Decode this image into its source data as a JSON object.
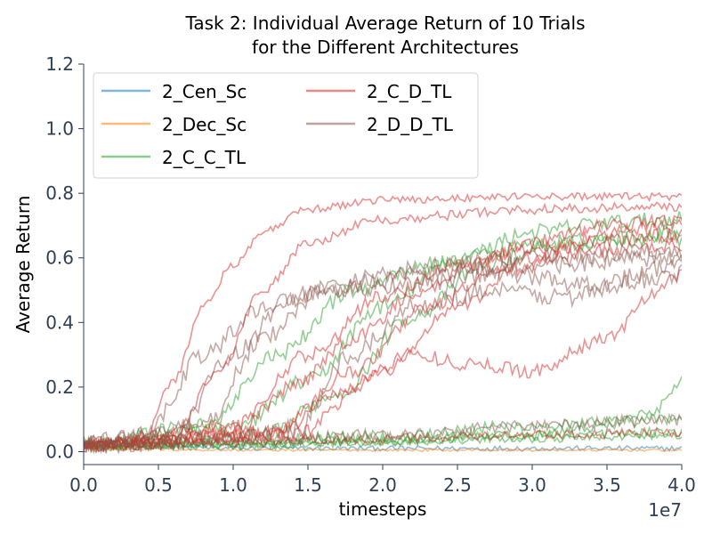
{
  "chart_data": {
    "type": "line",
    "title": [
      "Task 2: Individual Average Return of 10 Trials",
      "for the Different Architectures"
    ],
    "xlabel": "timesteps",
    "ylabel": "Average Return",
    "x_multiplier_label": "1e7",
    "xlim": [
      0,
      40000000
    ],
    "ylim": [
      -0.04,
      1.2
    ],
    "x_ticks": [
      0,
      5000000,
      10000000,
      15000000,
      20000000,
      25000000,
      30000000,
      35000000,
      40000000
    ],
    "x_tick_labels": [
      "0.0",
      "0.5",
      "1.0",
      "1.5",
      "2.0",
      "2.5",
      "3.0",
      "3.5",
      "4.0"
    ],
    "y_ticks": [
      0.0,
      0.2,
      0.4,
      0.6,
      0.8,
      1.0,
      1.2
    ],
    "y_tick_labels": [
      "0.0",
      "0.2",
      "0.4",
      "0.6",
      "0.8",
      "1.0",
      "1.2"
    ],
    "grid": false,
    "legend_position": "top-left",
    "legend_columns": 2,
    "series": [
      {
        "name": "2_Cen_Sc",
        "color": "#1f77b4",
        "trials": [
          {
            "x": [
              0,
              10000000,
              20000000,
              30000000,
              40000000
            ],
            "y": [
              0.02,
              0.01,
              0.01,
              0.01,
              0.01
            ],
            "noise": 0.008
          }
        ]
      },
      {
        "name": "2_Dec_Sc",
        "color": "#ff7f0e",
        "trials": [
          {
            "x": [
              0,
              10000000,
              20000000,
              30000000,
              40000000
            ],
            "y": [
              0.01,
              0.005,
              0.005,
              0.005,
              0.005
            ],
            "noise": 0.004
          }
        ]
      },
      {
        "name": "2_C_C_TL",
        "color": "#2ca02c",
        "trials": [
          {
            "x": [
              0,
              10000000,
              15000000,
              20000000,
              25000000,
              30000000,
              35000000,
              40000000
            ],
            "y": [
              0.02,
              0.07,
              0.22,
              0.45,
              0.6,
              0.68,
              0.71,
              0.72
            ],
            "noise": 0.025
          },
          {
            "x": [
              0,
              12000000,
              17000000,
              22000000,
              27000000,
              32000000,
              40000000
            ],
            "y": [
              0.02,
              0.05,
              0.18,
              0.42,
              0.58,
              0.65,
              0.68
            ],
            "noise": 0.025
          },
          {
            "x": [
              0,
              10000000,
              20000000,
              30000000,
              40000000
            ],
            "y": [
              0.02,
              0.03,
              0.04,
              0.05,
              0.06
            ],
            "noise": 0.015
          },
          {
            "x": [
              0,
              10000000,
              20000000,
              30000000,
              40000000
            ],
            "y": [
              0.02,
              0.02,
              0.03,
              0.04,
              0.05
            ],
            "noise": 0.012
          },
          {
            "x": [
              0,
              10000000,
              20000000,
              30000000,
              35000000,
              38000000,
              40000000
            ],
            "y": [
              0.02,
              0.02,
              0.03,
              0.05,
              0.08,
              0.12,
              0.22
            ],
            "noise": 0.015
          },
          {
            "x": [
              0,
              10000000,
              20000000,
              30000000,
              40000000
            ],
            "y": [
              0.02,
              0.03,
              0.05,
              0.08,
              0.1
            ],
            "noise": 0.02
          },
          {
            "x": [
              0,
              8000000,
              13000000,
              18000000,
              23000000,
              30000000,
              40000000
            ],
            "y": [
              0.02,
              0.08,
              0.3,
              0.5,
              0.58,
              0.64,
              0.66
            ],
            "noise": 0.025
          }
        ]
      },
      {
        "name": "2_C_D_TL",
        "color": "#d62728",
        "trials": [
          {
            "x": [
              0,
              4000000,
              6000000,
              8000000,
              10000000,
              12000000,
              15000000,
              20000000,
              30000000,
              40000000
            ],
            "y": [
              0.02,
              0.04,
              0.22,
              0.45,
              0.58,
              0.68,
              0.75,
              0.78,
              0.79,
              0.79
            ],
            "noise": 0.012
          },
          {
            "x": [
              0,
              6000000,
              9000000,
              12000000,
              15000000,
              20000000,
              30000000,
              40000000
            ],
            "y": [
              0.02,
              0.05,
              0.25,
              0.5,
              0.65,
              0.72,
              0.75,
              0.76
            ],
            "noise": 0.015
          },
          {
            "x": [
              0,
              10000000,
              14000000,
              18000000,
              22000000,
              26000000,
              30000000,
              35000000,
              40000000
            ],
            "y": [
              0.02,
              0.06,
              0.2,
              0.35,
              0.48,
              0.58,
              0.65,
              0.7,
              0.72
            ],
            "noise": 0.022
          },
          {
            "x": [
              0,
              10000000,
              15000000,
              20000000,
              25000000,
              30000000,
              40000000
            ],
            "y": [
              0.02,
              0.08,
              0.3,
              0.48,
              0.58,
              0.63,
              0.67
            ],
            "noise": 0.022
          },
          {
            "x": [
              0,
              12000000,
              17000000,
              22000000,
              26000000,
              30000000,
              35000000,
              38000000,
              40000000
            ],
            "y": [
              0.02,
              0.05,
              0.18,
              0.3,
              0.27,
              0.25,
              0.35,
              0.48,
              0.55
            ],
            "noise": 0.022
          },
          {
            "x": [
              0,
              14000000,
              20000000,
              25000000,
              30000000,
              35000000,
              40000000
            ],
            "y": [
              0.02,
              0.05,
              0.25,
              0.45,
              0.6,
              0.68,
              0.7
            ],
            "noise": 0.022
          },
          {
            "x": [
              0,
              10000000,
              20000000,
              30000000,
              40000000
            ],
            "y": [
              0.02,
              0.03,
              0.04,
              0.05,
              0.06
            ],
            "noise": 0.015
          },
          {
            "x": [
              0,
              13000000,
              18000000,
              23000000,
              28000000,
              34000000,
              40000000
            ],
            "y": [
              0.02,
              0.06,
              0.25,
              0.45,
              0.56,
              0.62,
              0.64
            ],
            "noise": 0.022
          }
        ]
      },
      {
        "name": "2_D_D_TL",
        "color": "#8c564b",
        "trials": [
          {
            "x": [
              0,
              4000000,
              8000000,
              12000000,
              16000000,
              20000000,
              25000000,
              30000000,
              40000000
            ],
            "y": [
              0.02,
              0.05,
              0.3,
              0.45,
              0.5,
              0.55,
              0.58,
              0.6,
              0.62
            ],
            "noise": 0.03
          },
          {
            "x": [
              0,
              6000000,
              10000000,
              14000000,
              18000000,
              25000000,
              30000000,
              40000000
            ],
            "y": [
              0.02,
              0.05,
              0.3,
              0.48,
              0.52,
              0.56,
              0.58,
              0.6
            ],
            "noise": 0.03
          },
          {
            "x": [
              0,
              8000000,
              12000000,
              16000000,
              22000000,
              28000000,
              34000000,
              40000000
            ],
            "y": [
              0.02,
              0.08,
              0.35,
              0.5,
              0.52,
              0.55,
              0.52,
              0.58
            ],
            "noise": 0.03
          },
          {
            "x": [
              0,
              14000000,
              18000000,
              22000000,
              27000000,
              32000000,
              40000000
            ],
            "y": [
              0.02,
              0.06,
              0.3,
              0.45,
              0.5,
              0.48,
              0.55
            ],
            "noise": 0.03
          },
          {
            "x": [
              0,
              10000000,
              20000000,
              30000000,
              40000000
            ],
            "y": [
              0.02,
              0.03,
              0.05,
              0.08,
              0.1
            ],
            "noise": 0.02
          }
        ]
      }
    ]
  }
}
